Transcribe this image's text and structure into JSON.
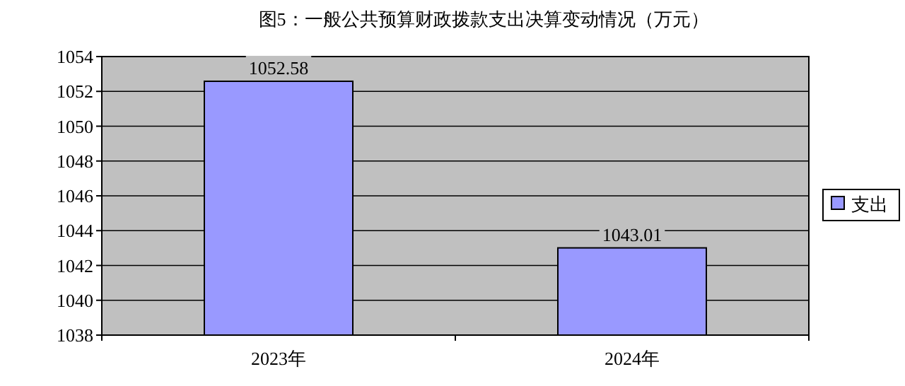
{
  "chart_data": {
    "type": "bar",
    "title": "图5：一般公共预算财政拨款支出决算变动情况（万元）",
    "categories": [
      "2023年",
      "2024年"
    ],
    "series": [
      {
        "name": "支出",
        "color": "#9999ff",
        "values": [
          1052.58,
          1043.01
        ]
      }
    ],
    "ylim": [
      1038,
      1054
    ],
    "yticks": [
      1038,
      1040,
      1042,
      1044,
      1046,
      1048,
      1050,
      1052,
      1054
    ],
    "grid": "y",
    "legend": "right",
    "data_labels": true
  }
}
